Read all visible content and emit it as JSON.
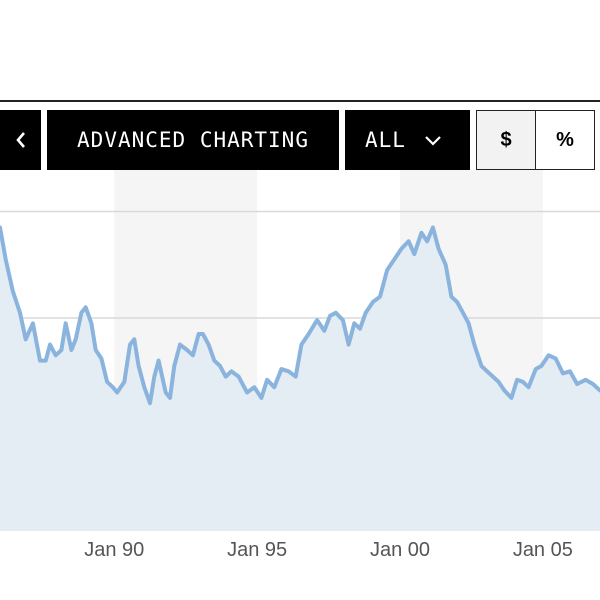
{
  "toolbar": {
    "back_icon": "chevron-left-icon",
    "title": "ADVANCED CHARTING",
    "range": {
      "selected": "ALL",
      "icon": "chevron-down-icon"
    },
    "units": {
      "options": [
        "$",
        "%"
      ],
      "selected": "$"
    }
  },
  "colors": {
    "line": "#8ab4de",
    "area": "#e4ecf4",
    "band": "#f5f5f5",
    "grid": "#d9d9d9",
    "button_bg": "#000000",
    "button_text": "#ffffff"
  },
  "chart_data": {
    "type": "area",
    "x_tick_labels": [
      "Jan 90",
      "Jan 95",
      "Jan 00",
      "Jan 05"
    ],
    "x_tick_years": [
      1990,
      1995,
      2000,
      2005
    ],
    "x_range": [
      1986,
      2007
    ],
    "y_range": [
      0,
      3
    ],
    "grid": true,
    "y_gridlines": [
      1,
      2,
      3
    ],
    "shaded_bands": [
      [
        1990,
        1995
      ],
      [
        2000,
        2005
      ]
    ],
    "x": [
      1986.0,
      1986.2,
      1986.45,
      1986.7,
      1986.9,
      1987.15,
      1987.4,
      1987.6,
      1987.75,
      1987.95,
      1988.15,
      1988.3,
      1988.5,
      1988.65,
      1988.85,
      1989.0,
      1989.2,
      1989.35,
      1989.55,
      1989.75,
      1989.95,
      1990.1,
      1990.35,
      1990.55,
      1990.7,
      1990.85,
      1991.05,
      1991.25,
      1991.4,
      1991.55,
      1991.8,
      1991.95,
      1992.1,
      1992.3,
      1992.55,
      1992.75,
      1992.95,
      1993.1,
      1993.3,
      1993.5,
      1993.7,
      1993.9,
      1994.1,
      1994.35,
      1994.65,
      1994.9,
      1995.15,
      1995.35,
      1995.6,
      1995.85,
      1996.1,
      1996.35,
      1996.55,
      1996.8,
      1997.1,
      1997.35,
      1997.55,
      1997.75,
      1998.0,
      1998.2,
      1998.4,
      1998.6,
      1998.8,
      1999.05,
      1999.3,
      1999.55,
      1999.8,
      2000.05,
      2000.3,
      2000.5,
      2000.75,
      2000.95,
      2001.15,
      2001.35,
      2001.6,
      2001.8,
      2002.0,
      2002.2,
      2002.4,
      2002.6,
      2002.85,
      2003.05,
      2003.25,
      2003.45,
      2003.65,
      2003.9,
      2004.1,
      2004.3,
      2004.5,
      2004.75,
      2004.95,
      2005.2,
      2005.45,
      2005.7,
      2005.95,
      2006.2,
      2006.5,
      2006.75,
      2007.0
    ],
    "y": [
      2.85,
      2.55,
      2.25,
      2.05,
      1.8,
      1.95,
      1.6,
      1.6,
      1.75,
      1.65,
      1.7,
      1.95,
      1.7,
      1.8,
      2.05,
      2.1,
      1.95,
      1.7,
      1.62,
      1.4,
      1.35,
      1.3,
      1.4,
      1.75,
      1.8,
      1.55,
      1.35,
      1.2,
      1.45,
      1.6,
      1.3,
      1.25,
      1.55,
      1.75,
      1.7,
      1.65,
      1.85,
      1.85,
      1.75,
      1.6,
      1.55,
      1.45,
      1.5,
      1.45,
      1.3,
      1.35,
      1.25,
      1.42,
      1.35,
      1.52,
      1.5,
      1.45,
      1.75,
      1.85,
      1.98,
      1.88,
      2.02,
      2.05,
      1.98,
      1.75,
      1.95,
      1.9,
      2.05,
      2.15,
      2.2,
      2.45,
      2.55,
      2.65,
      2.72,
      2.6,
      2.8,
      2.72,
      2.85,
      2.65,
      2.5,
      2.2,
      2.15,
      2.05,
      1.95,
      1.75,
      1.55,
      1.5,
      1.45,
      1.4,
      1.32,
      1.25,
      1.42,
      1.4,
      1.35,
      1.52,
      1.55,
      1.65,
      1.62,
      1.48,
      1.5,
      1.38,
      1.42,
      1.38,
      1.32
    ]
  }
}
